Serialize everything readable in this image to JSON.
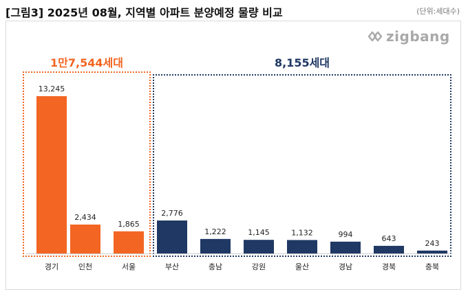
{
  "header": {
    "title": "[그림3] 2025년 08월, 지역별 아파트 분양예정 물량 비교",
    "unit": "(단위:세대수)"
  },
  "logo": {
    "text": "zigbang",
    "icon": "zigbang-logo-icon"
  },
  "colors": {
    "capital": "#f26522",
    "other": "#1f3864",
    "axis": "#cccccc"
  },
  "groups": [
    {
      "name": "capital",
      "total_label": "1만7,544세대"
    },
    {
      "name": "other",
      "total_label": "8,155세대"
    }
  ],
  "chart_data": {
    "type": "bar",
    "title": "[그림3] 2025년 08월, 지역별 아파트 분양예정 물량 비교",
    "unit": "(단위:세대수)",
    "categories": [
      "경기",
      "인천",
      "서울",
      "부산",
      "충남",
      "강원",
      "울산",
      "경남",
      "경북",
      "충북"
    ],
    "values": [
      13245,
      2434,
      1865,
      2776,
      1222,
      1145,
      1132,
      994,
      643,
      243
    ],
    "value_labels": [
      "13,245",
      "2,434",
      "1,865",
      "2,776",
      "1,222",
      "1,145",
      "1,132",
      "994",
      "643",
      "243"
    ],
    "group_of": [
      "capital",
      "capital",
      "capital",
      "other",
      "other",
      "other",
      "other",
      "other",
      "other",
      "other"
    ],
    "ylim": [
      0,
      13245
    ],
    "grid": false,
    "legend": "none"
  }
}
